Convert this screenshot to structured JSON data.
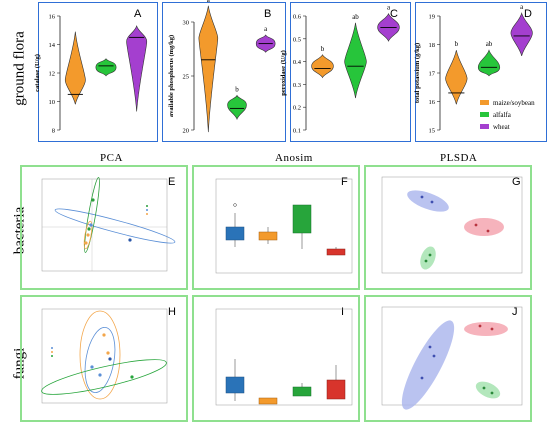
{
  "row_labels": {
    "ground": "ground flora",
    "bacteria": "bacteria",
    "fungi": "fungi"
  },
  "column_headers": {
    "pca": "PCA",
    "anosim": "Anosim",
    "plsda": "PLSDA"
  },
  "panel_letters": {
    "A": "A",
    "B": "B",
    "C": "C",
    "D": "D",
    "E": "E",
    "F": "F",
    "G": "G",
    "H": "H",
    "I": "I",
    "J": "J"
  },
  "colors": {
    "maize_soybean": "#f39a2c",
    "alfalfa": "#27c53b",
    "wheat": "#a43fcf",
    "blue_frame": "#2f6fd6",
    "green_frame": "#8fe08f"
  },
  "legend": {
    "maize": "maize/soybean",
    "alfalfa": "alfalfa",
    "wheat": "wheat"
  },
  "chart_data": [
    {
      "id": "A",
      "type": "violin",
      "ylabel": "catalase (U/g)",
      "ylim": [
        8,
        16
      ],
      "yticks": [
        "8",
        "10",
        "12",
        "14",
        "16"
      ],
      "letters": [],
      "series": [
        {
          "name": "maize/soybean",
          "min": 9.8,
          "max": 14.9,
          "median": 10.5,
          "widest": 11.5
        },
        {
          "name": "alfalfa",
          "min": 11.8,
          "max": 13.0,
          "median": 12.5,
          "widest": 12.4
        },
        {
          "name": "wheat",
          "min": 9.3,
          "max": 15.3,
          "median": 14.5,
          "widest": 14.2
        }
      ]
    },
    {
      "id": "B",
      "type": "violin",
      "ylabel": "available phosphorus (mg/kg)",
      "ylim": [
        20,
        30
      ],
      "yticks": [
        "20",
        "25",
        "30"
      ],
      "letters": [
        "a",
        "b",
        "a"
      ],
      "series": [
        {
          "name": "maize/soybean",
          "min": 19.8,
          "max": 31.5,
          "median": 26.5,
          "widest": 28.5
        },
        {
          "name": "alfalfa",
          "min": 21.0,
          "max": 23.2,
          "median": 22.0,
          "widest": 22.3
        },
        {
          "name": "wheat",
          "min": 27.2,
          "max": 28.8,
          "median": 28.0,
          "widest": 28.0
        }
      ]
    },
    {
      "id": "C",
      "type": "violin",
      "ylabel": "peroxidase (U/g)",
      "ylim": [
        0.1,
        0.6
      ],
      "yticks": [
        "0.1",
        "0.2",
        "0.3",
        "0.4",
        "0.5",
        "0.6"
      ],
      "letters": [
        "b",
        "ab",
        "a"
      ],
      "series": [
        {
          "name": "maize/soybean",
          "min": 0.33,
          "max": 0.43,
          "median": 0.37,
          "widest": 0.38
        },
        {
          "name": "alfalfa",
          "min": 0.24,
          "max": 0.57,
          "median": 0.38,
          "widest": 0.4
        },
        {
          "name": "wheat",
          "min": 0.49,
          "max": 0.61,
          "median": 0.55,
          "widest": 0.55
        }
      ]
    },
    {
      "id": "D",
      "type": "violin",
      "ylabel": "total potassium (g/kg)",
      "ylim": [
        15,
        19
      ],
      "yticks": [
        "15",
        "16",
        "17",
        "18",
        "19"
      ],
      "letters": [
        "b",
        "ab",
        "a"
      ],
      "series": [
        {
          "name": "maize/soybean",
          "min": 15.9,
          "max": 17.8,
          "median": 16.3,
          "widest": 16.8
        },
        {
          "name": "alfalfa",
          "min": 16.9,
          "max": 17.8,
          "median": 17.2,
          "widest": 17.2
        },
        {
          "name": "wheat",
          "min": 17.6,
          "max": 19.1,
          "median": 18.3,
          "widest": 18.4
        }
      ]
    }
  ]
}
